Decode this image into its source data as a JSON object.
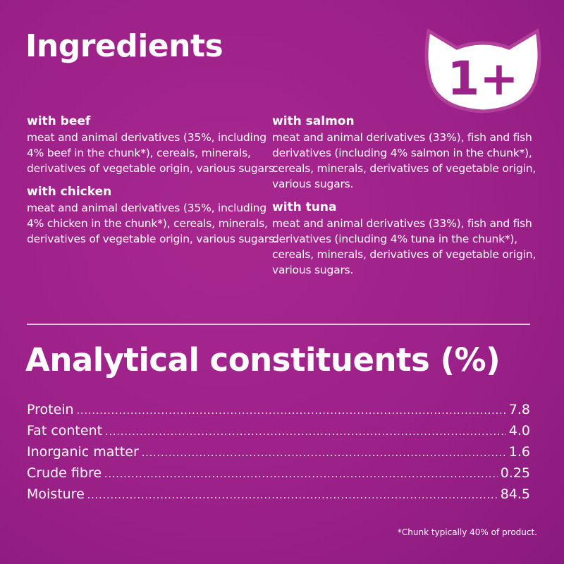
{
  "ingredients": {
    "title": "Ingredients",
    "badge": "1+",
    "variants": [
      {
        "name": "with beef",
        "text": "meat and animal derivatives (35%, including 4% beef in the chunk*), cereals, minerals, derivatives of vegetable origin, various sugars."
      },
      {
        "name": "with chicken",
        "text": "meat and animal derivatives (35%, including 4% chicken in the chunk*), cereals, minerals, derivatives of vegetable origin, various sugars."
      },
      {
        "name": "with salmon",
        "text": "meat and animal derivatives (33%), fish and fish derivatives (including 4% salmon in the chunk*), cereals, minerals, derivatives of vegetable origin, various sugars."
      },
      {
        "name": "with tuna",
        "text": "meat and animal derivatives (33%), fish and fish derivatives (including 4% tuna in the chunk*), cereals, minerals, derivatives of vegetable origin, various sugars."
      }
    ]
  },
  "analytical": {
    "title": "Analytical constituents (%)",
    "rows": [
      {
        "label": "Protein",
        "value": "7.8"
      },
      {
        "label": "Fat content",
        "value": "4.0"
      },
      {
        "label": "Inorganic matter",
        "value": "1.6"
      },
      {
        "label": "Crude fibre",
        "value": "0.25"
      },
      {
        "label": "Moisture",
        "value": "84.5"
      }
    ]
  },
  "footnote": "*Chunk typically 40% of product.",
  "colors": {
    "background": "#a2248c",
    "text": "#ffffff"
  }
}
